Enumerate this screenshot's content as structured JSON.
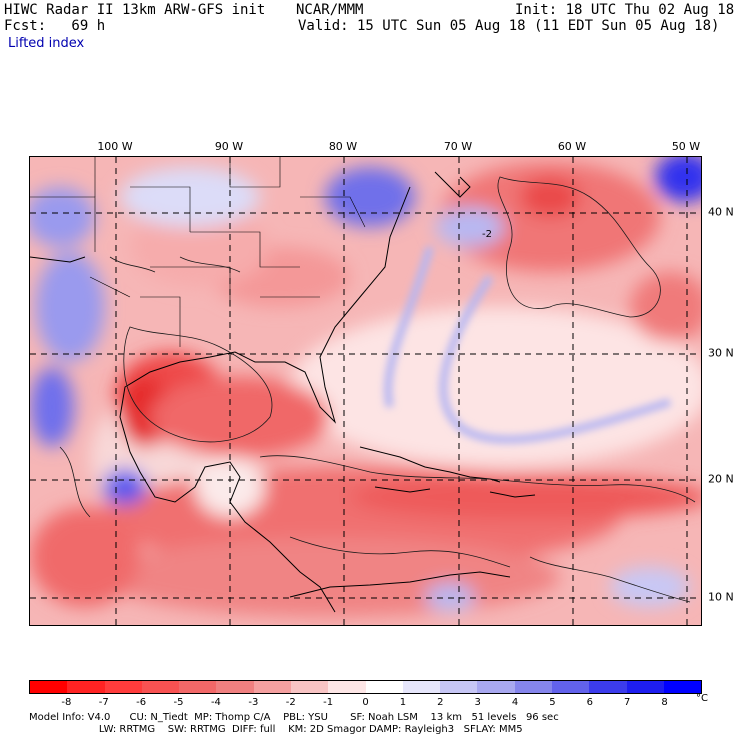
{
  "header": {
    "title": "HIWC Radar II 13km ARW-GFS init",
    "org": "NCAR/MMM",
    "init": "Init: 18 UTC Thu 02 Aug 18",
    "fcst": "Fcst:   69 h",
    "valid": "Valid: 15 UTC Sun 05 Aug 18 (11 EDT Sun 05 Aug 18)",
    "field": "Lifted index"
  },
  "map": {
    "lon_labels": [
      "100 W",
      "90 W",
      "80 W",
      "70 W",
      "60 W",
      "50 W"
    ],
    "lat_labels": [
      "40 N",
      "30 N",
      "20 N",
      "10 N"
    ],
    "contour_label": "-2"
  },
  "colorbar": {
    "ticks": [
      "-8",
      "-7",
      "-6",
      "-5",
      "-4",
      "-3",
      "-2",
      "-1",
      "0",
      "1",
      "2",
      "3",
      "4",
      "5",
      "6",
      "7",
      "8"
    ],
    "unit": "°C",
    "colors": [
      "#ff0000",
      "#ff2323",
      "#ff3c3c",
      "#f85252",
      "#f26868",
      "#f08080",
      "#f5a0a0",
      "#f8c4c4",
      "#fde6e6",
      "#ffffff",
      "#e6e6fb",
      "#c6c6f5",
      "#a8a8f0",
      "#8585ec",
      "#6262eb",
      "#3c3cec",
      "#1e1ef0",
      "#0000ff"
    ]
  },
  "footer": {
    "line1": "Model Info: V4.0      CU: N_Tiedt  MP: Thomp C/A    PBL: YSU       SF: Noah LSM    13 km   51 levels   96 sec",
    "line2": "                      LW: RRTMG    SW: RRTMG  DIFF: full    KM: 2D Smagor DAMP: Rayleigh3   SFLAY: MM5"
  }
}
